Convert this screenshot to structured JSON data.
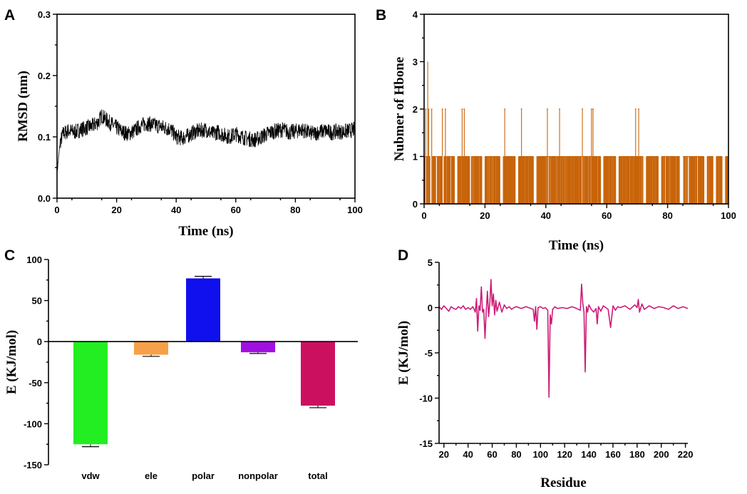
{
  "panels": {
    "A": {
      "letter": "A"
    },
    "B": {
      "letter": "B"
    },
    "C": {
      "letter": "C"
    },
    "D": {
      "letter": "D"
    }
  },
  "colors": {
    "rmsd_line": "#000000",
    "hbond_line": "#c8640a",
    "decomp_line": "#cc1c78",
    "vdw": "#22ee22",
    "ele": "#f7a04a",
    "polar": "#1010ee",
    "nonpolar": "#a010e0",
    "total": "#cc1060"
  },
  "chart_data": [
    {
      "id": "A",
      "type": "line",
      "title": "",
      "xlabel": "Time (ns)",
      "ylabel": "RMSD (nm)",
      "xlim": [
        0,
        100
      ],
      "ylim": [
        0.0,
        0.3
      ],
      "xticks": [
        0,
        20,
        40,
        60,
        80,
        100
      ],
      "yticks": [
        "0.0",
        "0.1",
        "0.2",
        "0.3"
      ],
      "x": [
        0,
        1,
        2,
        4,
        6,
        8,
        10,
        12,
        14,
        15,
        16,
        18,
        20,
        22,
        24,
        26,
        28,
        30,
        32,
        34,
        36,
        38,
        40,
        42,
        44,
        46,
        48,
        50,
        52,
        54,
        56,
        58,
        60,
        62,
        64,
        66,
        68,
        70,
        72,
        74,
        76,
        78,
        80,
        82,
        84,
        86,
        88,
        90,
        92,
        94,
        96,
        98,
        100
      ],
      "y": [
        0.04,
        0.09,
        0.105,
        0.11,
        0.108,
        0.112,
        0.115,
        0.118,
        0.125,
        0.135,
        0.13,
        0.122,
        0.115,
        0.108,
        0.105,
        0.11,
        0.118,
        0.122,
        0.12,
        0.118,
        0.115,
        0.113,
        0.1,
        0.098,
        0.102,
        0.108,
        0.11,
        0.112,
        0.105,
        0.108,
        0.103,
        0.1,
        0.105,
        0.1,
        0.097,
        0.095,
        0.098,
        0.104,
        0.108,
        0.11,
        0.112,
        0.107,
        0.109,
        0.112,
        0.108,
        0.105,
        0.108,
        0.11,
        0.107,
        0.109,
        0.108,
        0.11,
        0.112
      ]
    },
    {
      "id": "B",
      "type": "line",
      "title": "",
      "xlabel": "Time (ns)",
      "ylabel": "Nubmer of Hbone",
      "xlim": [
        0,
        100
      ],
      "ylim": [
        0,
        4
      ],
      "xticks": [
        0,
        20,
        40,
        60,
        80,
        100
      ],
      "yticks": [
        0,
        1,
        2,
        3,
        4
      ],
      "spikes_to_3": [
        1.2
      ],
      "spikes_to_2": [
        0.5,
        1.5,
        2.5,
        6,
        7,
        12.5,
        13.2,
        26.5,
        32,
        40.5,
        44.5,
        52,
        55,
        55.5,
        69.5,
        70.5
      ],
      "value_one_intervals": [
        [
          0,
          2
        ],
        [
          2.5,
          6
        ],
        [
          6.5,
          10
        ],
        [
          11,
          15
        ],
        [
          15.5,
          19
        ],
        [
          20,
          25
        ],
        [
          26,
          30
        ],
        [
          31,
          36
        ],
        [
          37,
          58
        ],
        [
          59,
          63
        ],
        [
          64,
          72
        ],
        [
          73,
          77
        ],
        [
          78,
          84
        ],
        [
          85,
          92
        ],
        [
          93,
          95
        ],
        [
          96,
          98
        ],
        [
          99,
          100
        ]
      ]
    },
    {
      "id": "C",
      "type": "bar",
      "title": "",
      "xlabel": "",
      "ylabel": "E (KJ/mol)",
      "ylim": [
        -150,
        100
      ],
      "yticks": [
        100,
        50,
        0,
        -50,
        -100,
        -150
      ],
      "categories": [
        "vdw",
        "ele",
        "polar",
        "nonpolar",
        "total"
      ],
      "values": [
        -125,
        -16,
        77,
        -13,
        -78
      ],
      "errors": [
        3,
        2,
        2.5,
        1.5,
        2.5
      ]
    },
    {
      "id": "D",
      "type": "line",
      "title": "",
      "xlabel": "Residue",
      "ylabel": "E (KJ/mol)",
      "xlim": [
        16,
        222
      ],
      "ylim": [
        -15,
        5
      ],
      "xticks": [
        20,
        40,
        60,
        80,
        100,
        120,
        140,
        160,
        180,
        200,
        220
      ],
      "yticks": [
        5,
        0,
        -5,
        -10,
        -15
      ],
      "x": [
        16,
        18,
        20,
        22,
        24,
        26,
        28,
        30,
        32,
        34,
        36,
        38,
        40,
        42,
        44,
        46,
        47,
        48,
        49,
        50,
        51,
        52,
        53,
        54,
        55,
        56,
        57,
        58,
        59,
        60,
        61,
        62,
        63,
        64,
        66,
        68,
        70,
        72,
        74,
        76,
        78,
        80,
        84,
        88,
        92,
        94,
        95,
        96,
        97,
        98,
        100,
        102,
        104,
        106,
        107,
        108,
        109,
        110,
        112,
        114,
        118,
        122,
        126,
        130,
        133,
        134,
        135,
        136,
        137,
        138,
        139,
        140,
        142,
        144,
        146,
        147,
        148,
        150,
        152,
        154,
        156,
        158,
        160,
        162,
        164,
        166,
        170,
        174,
        178,
        180,
        181,
        182,
        184,
        186,
        190,
        194,
        198,
        202,
        206,
        210,
        214,
        218,
        222
      ],
      "y": [
        0.1,
        -0.2,
        0.2,
        -0.1,
        -0.4,
        0.1,
        -0.1,
        -0.2,
        0.1,
        -0.1,
        0.2,
        -0.2,
        0.0,
        -0.2,
        0.1,
        -0.5,
        1.0,
        -2.6,
        0.2,
        -0.3,
        2.3,
        -0.5,
        -0.2,
        -3.4,
        -0.5,
        1.8,
        -1.0,
        0.5,
        3.1,
        0.2,
        1.5,
        -0.8,
        0.8,
        -0.4,
        0.6,
        -0.5,
        0.3,
        -0.1,
        0.1,
        -0.2,
        0.0,
        0.1,
        -0.1,
        0.1,
        -0.1,
        -0.2,
        -1.5,
        0.1,
        -2.4,
        0.0,
        0.1,
        -0.1,
        0.0,
        -0.3,
        -9.9,
        -0.8,
        -1.8,
        -0.2,
        0.1,
        -0.1,
        0.0,
        -0.1,
        0.1,
        -0.1,
        -0.3,
        2.6,
        0.5,
        -0.5,
        -7.1,
        0.1,
        -0.5,
        0.3,
        -0.2,
        -0.5,
        -0.1,
        -1.8,
        0.1,
        -0.4,
        0.2,
        0.0,
        -0.2,
        -2.2,
        0.2,
        -0.3,
        0.1,
        0.0,
        0.2,
        -0.2,
        0.3,
        0.0,
        0.9,
        -0.5,
        0.4,
        -0.2,
        0.2,
        -0.1,
        0.1,
        0.0,
        -0.2,
        0.2,
        -0.1,
        0.1,
        -0.1
      ]
    }
  ]
}
